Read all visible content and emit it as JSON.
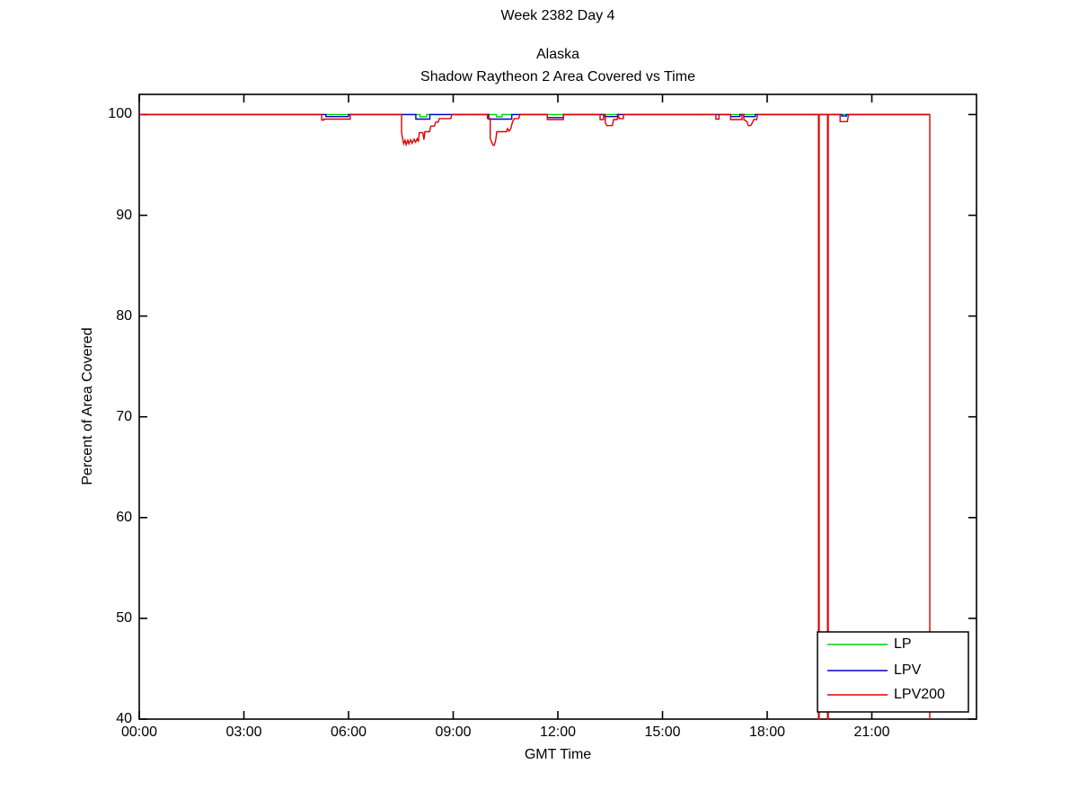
{
  "chart_data": {
    "type": "line",
    "suptitle": "Week 2382 Day 4",
    "title_lines": [
      "Alaska",
      "Shadow Raytheon 2 Area Covered vs Time"
    ],
    "xlabel": "GMT Time",
    "ylabel": "Percent of Area Covered",
    "xlim_hours": [
      0,
      24
    ],
    "ylim": [
      40,
      102
    ],
    "grid": false,
    "background_color": "#ffffff",
    "axis_color": "#000000",
    "x_ticks": [
      {
        "hour": 0,
        "label": "00:00"
      },
      {
        "hour": 3,
        "label": "03:00"
      },
      {
        "hour": 6,
        "label": "06:00"
      },
      {
        "hour": 9,
        "label": "09:00"
      },
      {
        "hour": 12,
        "label": "12:00"
      },
      {
        "hour": 15,
        "label": "15:00"
      },
      {
        "hour": 18,
        "label": "18:00"
      },
      {
        "hour": 21,
        "label": "21:00"
      }
    ],
    "y_ticks": [
      {
        "value": 100,
        "label": "100"
      },
      {
        "value": 90,
        "label": "90"
      },
      {
        "value": 80,
        "label": "80"
      },
      {
        "value": 70,
        "label": "70"
      },
      {
        "value": 60,
        "label": "60"
      },
      {
        "value": 50,
        "label": "50"
      },
      {
        "value": 40,
        "label": "40"
      }
    ],
    "legend": {
      "position": "bottom-right",
      "entries": [
        {
          "name": "LP",
          "color": "#00d000"
        },
        {
          "name": "LPV",
          "color": "#0000d0"
        },
        {
          "name": "LPV200",
          "color": "#e00000"
        }
      ]
    },
    "series": [
      {
        "name": "LP",
        "color": "#00d000",
        "points": [
          [
            0,
            100
          ],
          [
            8.05,
            100
          ],
          [
            8.05,
            99.78
          ],
          [
            8.24,
            99.78
          ],
          [
            8.24,
            100
          ],
          [
            10.24,
            100
          ],
          [
            10.24,
            99.78
          ],
          [
            10.4,
            99.78
          ],
          [
            10.4,
            100
          ],
          [
            22.66,
            100
          ]
        ]
      },
      {
        "name": "LPV",
        "color": "#0000d0",
        "points": [
          [
            0,
            100
          ],
          [
            5.35,
            100
          ],
          [
            5.35,
            99.8
          ],
          [
            6.0,
            99.8
          ],
          [
            6.0,
            100
          ],
          [
            7.93,
            100
          ],
          [
            7.93,
            99.55
          ],
          [
            8.33,
            99.55
          ],
          [
            8.33,
            100
          ],
          [
            10.02,
            100
          ],
          [
            10.02,
            99.55
          ],
          [
            10.68,
            99.55
          ],
          [
            10.68,
            100
          ],
          [
            11.7,
            100
          ],
          [
            11.7,
            99.7
          ],
          [
            12.16,
            99.7
          ],
          [
            12.16,
            100
          ],
          [
            13.33,
            100
          ],
          [
            13.33,
            99.8
          ],
          [
            13.71,
            99.8
          ],
          [
            13.71,
            100
          ],
          [
            16.95,
            100
          ],
          [
            16.95,
            99.8
          ],
          [
            17.22,
            99.8
          ],
          [
            17.22,
            100
          ],
          [
            17.33,
            100
          ],
          [
            17.33,
            99.8
          ],
          [
            17.66,
            99.8
          ],
          [
            17.66,
            100
          ],
          [
            20.14,
            100
          ],
          [
            20.14,
            99.85
          ],
          [
            20.27,
            99.85
          ],
          [
            20.27,
            100
          ],
          [
            22.66,
            100
          ]
        ]
      },
      {
        "name": "LPV200",
        "color": "#e00000",
        "points": [
          [
            0,
            100
          ],
          [
            5.23,
            100
          ],
          [
            5.23,
            99.45
          ],
          [
            5.29,
            99.45
          ],
          [
            5.29,
            99.55
          ],
          [
            6.05,
            99.55
          ],
          [
            6.05,
            100
          ],
          [
            7.52,
            100
          ],
          [
            7.52,
            98.2
          ],
          [
            7.55,
            97.6
          ],
          [
            7.58,
            97.1
          ],
          [
            7.62,
            97.45
          ],
          [
            7.65,
            97.0
          ],
          [
            7.7,
            97.45
          ],
          [
            7.73,
            97.1
          ],
          [
            7.78,
            97.5
          ],
          [
            7.82,
            97.15
          ],
          [
            7.88,
            97.55
          ],
          [
            7.92,
            97.25
          ],
          [
            7.97,
            97.6
          ],
          [
            8.0,
            97.3
          ],
          [
            8.03,
            98.2
          ],
          [
            8.13,
            98.2
          ],
          [
            8.16,
            97.5
          ],
          [
            8.19,
            98.3
          ],
          [
            8.32,
            98.3
          ],
          [
            8.36,
            98.85
          ],
          [
            8.46,
            98.85
          ],
          [
            8.5,
            99.25
          ],
          [
            8.57,
            99.25
          ],
          [
            8.6,
            99.6
          ],
          [
            8.93,
            99.6
          ],
          [
            8.96,
            100
          ],
          [
            9.98,
            100
          ],
          [
            9.98,
            99.6
          ],
          [
            10.06,
            99.6
          ],
          [
            10.06,
            97.6
          ],
          [
            10.1,
            97.3
          ],
          [
            10.14,
            96.95
          ],
          [
            10.18,
            96.95
          ],
          [
            10.22,
            97.5
          ],
          [
            10.25,
            98.3
          ],
          [
            10.53,
            98.3
          ],
          [
            10.56,
            98.6
          ],
          [
            10.6,
            98.35
          ],
          [
            10.65,
            98.6
          ],
          [
            10.7,
            99.25
          ],
          [
            10.75,
            99.6
          ],
          [
            10.88,
            99.6
          ],
          [
            10.91,
            100
          ],
          [
            11.7,
            100
          ],
          [
            11.7,
            99.5
          ],
          [
            12.16,
            99.5
          ],
          [
            12.16,
            100
          ],
          [
            13.21,
            100
          ],
          [
            13.21,
            99.5
          ],
          [
            13.31,
            99.5
          ],
          [
            13.31,
            100
          ],
          [
            13.36,
            100
          ],
          [
            13.36,
            99.2
          ],
          [
            13.4,
            98.9
          ],
          [
            13.56,
            98.9
          ],
          [
            13.6,
            99.5
          ],
          [
            13.7,
            99.5
          ],
          [
            13.73,
            99.95
          ],
          [
            13.76,
            99.6
          ],
          [
            13.88,
            99.6
          ],
          [
            13.88,
            100
          ],
          [
            16.53,
            100
          ],
          [
            16.53,
            99.55
          ],
          [
            16.62,
            99.55
          ],
          [
            16.62,
            100
          ],
          [
            16.95,
            100
          ],
          [
            16.95,
            99.5
          ],
          [
            17.28,
            99.5
          ],
          [
            17.28,
            100
          ],
          [
            17.33,
            100
          ],
          [
            17.33,
            99.5
          ],
          [
            17.42,
            99.3
          ],
          [
            17.46,
            98.9
          ],
          [
            17.53,
            98.9
          ],
          [
            17.57,
            99.15
          ],
          [
            17.62,
            99.5
          ],
          [
            17.7,
            99.5
          ],
          [
            17.73,
            100
          ],
          [
            19.47,
            100
          ],
          [
            19.47,
            40
          ],
          [
            19.49,
            40
          ],
          [
            19.49,
            100
          ],
          [
            19.73,
            100
          ],
          [
            19.73,
            40
          ],
          [
            19.75,
            40
          ],
          [
            19.75,
            100
          ],
          [
            20.09,
            100
          ],
          [
            20.09,
            99.3
          ],
          [
            20.3,
            99.3
          ],
          [
            20.33,
            100
          ],
          [
            22.66,
            100
          ],
          [
            22.66,
            40
          ]
        ]
      }
    ]
  }
}
